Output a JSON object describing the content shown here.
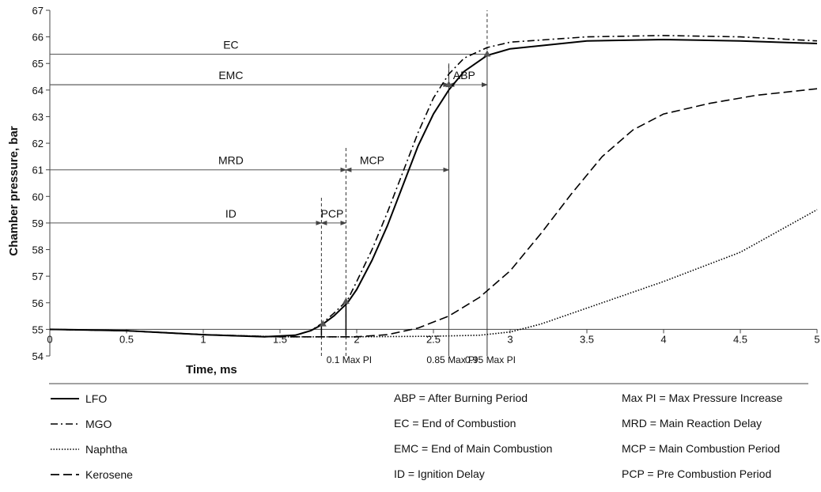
{
  "chart_data": {
    "type": "line",
    "xlabel": "Time, ms",
    "ylabel": "Chamber pressure, bar",
    "xlim": [
      0,
      5
    ],
    "ylim": [
      54,
      67
    ],
    "xticks": [
      0,
      0.5,
      1,
      1.5,
      2,
      2.5,
      3,
      3.5,
      4,
      4.5,
      5
    ],
    "xtick_labels": [
      "0",
      "0.5",
      "1",
      "1.5",
      "2",
      "2.5",
      "3",
      "3.5",
      "4",
      "4.5",
      "5"
    ],
    "yticks": [
      54,
      55,
      56,
      57,
      58,
      59,
      60,
      61,
      62,
      63,
      64,
      65,
      66,
      67
    ],
    "ytick_labels": [
      "54",
      "55",
      "56",
      "57",
      "58",
      "59",
      "60",
      "61",
      "62",
      "63",
      "64",
      "65",
      "66",
      "67"
    ],
    "grid": false,
    "legend_position": "bottom",
    "series": [
      {
        "name": "LFO",
        "dash": "solid",
        "color": "#000000",
        "x": [
          0,
          0.5,
          1,
          1.4,
          1.6,
          1.7,
          1.78,
          1.85,
          1.94,
          2.0,
          2.1,
          2.2,
          2.3,
          2.4,
          2.5,
          2.6,
          2.7,
          2.85,
          3.0,
          3.5,
          4.0,
          4.5,
          5.0
        ],
        "y": [
          55.0,
          54.95,
          54.8,
          54.72,
          54.78,
          54.95,
          55.2,
          55.5,
          56.0,
          56.5,
          57.6,
          58.9,
          60.4,
          61.9,
          63.1,
          64.0,
          64.7,
          65.3,
          65.55,
          65.85,
          65.9,
          65.85,
          65.75
        ]
      },
      {
        "name": "MGO",
        "dash": "dashdot",
        "color": "#000000",
        "x": [
          0,
          0.5,
          1,
          1.4,
          1.6,
          1.7,
          1.78,
          1.85,
          1.94,
          2.0,
          2.1,
          2.2,
          2.3,
          2.4,
          2.5,
          2.6,
          2.7,
          2.85,
          3.0,
          3.5,
          4.0,
          4.5,
          5.0
        ],
        "y": [
          55.0,
          54.95,
          54.8,
          54.72,
          54.78,
          54.95,
          55.25,
          55.6,
          56.1,
          56.8,
          58.0,
          59.4,
          60.9,
          62.4,
          63.7,
          64.6,
          65.2,
          65.6,
          65.8,
          66.0,
          66.05,
          66.0,
          65.85
        ]
      },
      {
        "name": "Naphtha",
        "dash": "dotted",
        "color": "#000000",
        "x": [
          0,
          0.5,
          1,
          1.5,
          2.0,
          2.5,
          2.8,
          3.0,
          3.2,
          3.5,
          4.0,
          4.5,
          5.0
        ],
        "y": [
          55.0,
          54.95,
          54.8,
          54.72,
          54.72,
          54.74,
          54.78,
          54.9,
          55.2,
          55.8,
          56.8,
          57.9,
          59.5
        ]
      },
      {
        "name": "Kerosene",
        "dash": "dashed",
        "color": "#000000",
        "x": [
          0,
          0.5,
          1,
          1.5,
          2.0,
          2.2,
          2.4,
          2.6,
          2.8,
          3.0,
          3.2,
          3.4,
          3.6,
          3.8,
          4.0,
          4.3,
          4.6,
          5.0
        ],
        "y": [
          55.0,
          54.95,
          54.8,
          54.72,
          54.72,
          54.8,
          55.05,
          55.5,
          56.2,
          57.2,
          58.6,
          60.1,
          61.5,
          62.5,
          63.1,
          63.5,
          63.8,
          64.05
        ]
      }
    ],
    "vlines": [
      {
        "x": 1.77,
        "ymin": 54,
        "ymax": 60,
        "style": "dashed"
      },
      {
        "x": 1.93,
        "ymin": 54,
        "ymax": 61.9,
        "style": "dashed"
      },
      {
        "x": 2.6,
        "ymin": 54,
        "ymax": 65,
        "style": "solid"
      },
      {
        "x": 2.6,
        "ymin": 64.2,
        "ymax": 65.0,
        "style": "dashed"
      },
      {
        "x": 2.85,
        "ymin": 54,
        "ymax": 65.3,
        "style": "solid"
      },
      {
        "x": 2.85,
        "ymin": 65.3,
        "ymax": 67,
        "style": "dashed"
      }
    ],
    "stems": [
      {
        "x": 1.77,
        "y0": 54.75,
        "y1": 55.2
      },
      {
        "x": 1.93,
        "y0": 54.75,
        "y1": 56.0
      }
    ],
    "hlines": [
      {
        "x0": 0,
        "x1": 2.85,
        "y": 65.35
      },
      {
        "x0": 0,
        "x1": 2.6,
        "y": 64.2
      }
    ],
    "intervals": [
      {
        "label": "EC",
        "x0": 0,
        "x1": 2.85,
        "y": 65.35,
        "label_x": 1.18,
        "arrow_start": false,
        "arrow_end": false
      },
      {
        "label": "EMC",
        "x0": 0,
        "x1": 2.6,
        "y": 64.2,
        "label_x": 1.18,
        "arrow_start": false,
        "arrow_end": true
      },
      {
        "label": "ABP",
        "x0": 2.6,
        "x1": 2.85,
        "y": 64.2,
        "label_x": 2.7,
        "arrow_start": true,
        "arrow_end": true
      },
      {
        "label": "MRD",
        "x0": 0,
        "x1": 1.93,
        "y": 61.0,
        "label_x": 1.18,
        "arrow_start": false,
        "arrow_end": true
      },
      {
        "label": "MCP",
        "x0": 1.93,
        "x1": 2.6,
        "y": 61.0,
        "label_x": 2.1,
        "arrow_start": true,
        "arrow_end": true
      },
      {
        "label": "ID",
        "x0": 0,
        "x1": 1.77,
        "y": 59.0,
        "label_x": 1.18,
        "arrow_start": false,
        "arrow_end": true
      },
      {
        "label": "PCP",
        "x0": 1.77,
        "x1": 1.93,
        "y": 59.0,
        "label_x": 1.84,
        "arrow_start": true,
        "arrow_end": true
      }
    ],
    "markers": [
      {
        "x": 1.78,
        "y": 55.2
      },
      {
        "x": 1.93,
        "y": 56.05
      },
      {
        "x": 2.6,
        "y": 64.2
      },
      {
        "x": 2.85,
        "y": 65.35
      }
    ],
    "annotations": [
      {
        "text": "0.1 Max PI",
        "x": 1.93
      },
      {
        "text": "0.85 Max PI",
        "x": 2.6
      },
      {
        "text": "0.95 Max PI",
        "x": 2.85
      }
    ]
  },
  "legend": [
    {
      "name": "LFO",
      "dash": "solid"
    },
    {
      "name": "MGO",
      "dash": "dashdot"
    },
    {
      "name": "Naphtha",
      "dash": "dotted"
    },
    {
      "name": "Kerosene",
      "dash": "dashed"
    }
  ],
  "abbreviations": {
    "col1": [
      "ABP = After Burning Period",
      "EC = End of Combustion",
      "EMC = End of Main Combustion",
      "ID = Ignition Delay"
    ],
    "col2": [
      "Max PI = Max Pressure Increase",
      "MRD = Main Reaction Delay",
      "MCP = Main Combustion Period",
      "PCP = Pre Combustion Period"
    ]
  }
}
